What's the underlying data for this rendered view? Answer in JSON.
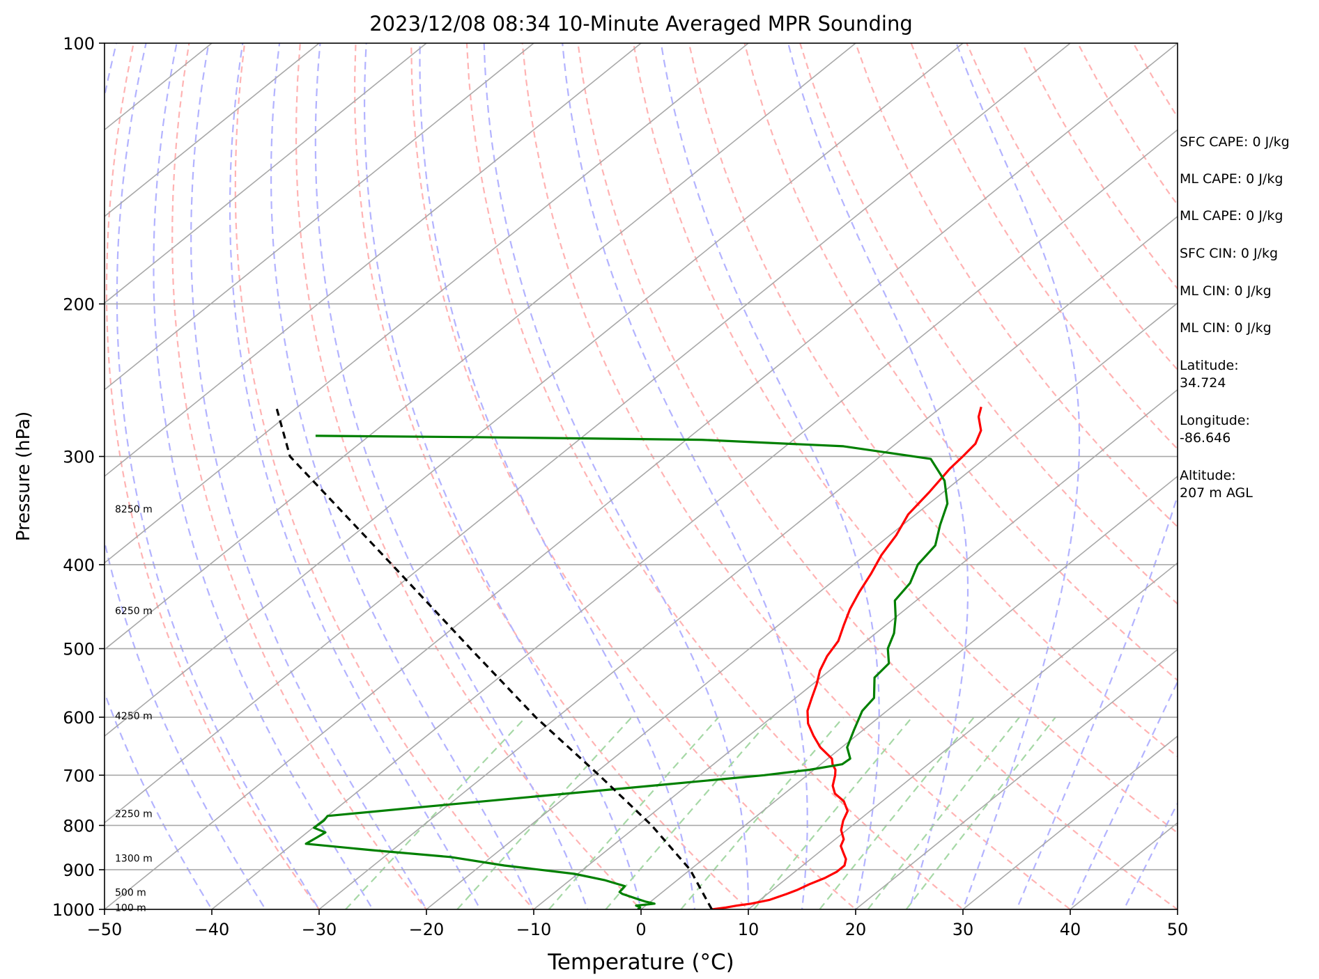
{
  "chart_data": {
    "type": "line",
    "title": "2023/12/08 08:34 10-Minute Averaged MPR Sounding",
    "xlabel": "Temperature (°C)",
    "ylabel": "Pressure (hPa)",
    "xlim": [
      -50,
      50
    ],
    "ylim": [
      1000,
      100
    ],
    "y_scale": "log",
    "skew": "skew-T",
    "x_ticks": [
      "−50",
      "−40",
      "−30",
      "−20",
      "−10",
      "0",
      "10",
      "20",
      "30",
      "40",
      "50"
    ],
    "y_ticks": [
      "100",
      "200",
      "300",
      "400",
      "500",
      "600",
      "700",
      "800",
      "900",
      "1000"
    ],
    "height_labels": [
      {
        "text": "8250 m",
        "p": 345
      },
      {
        "text": "6250 m",
        "p": 452
      },
      {
        "text": "4250 m",
        "p": 598
      },
      {
        "text": "2250 m",
        "p": 775
      },
      {
        "text": "1300 m",
        "p": 873
      },
      {
        "text": "500 m",
        "p": 956
      },
      {
        "text": "100 m",
        "p": 995
      }
    ],
    "series": [
      {
        "role": "temperature",
        "color": "#ff0000",
        "p": [
          1000,
          995,
          990,
          985,
          975,
          960,
          950,
          935,
          920,
          905,
          890,
          875,
          860,
          845,
          830,
          810,
          790,
          770,
          750,
          735,
          720,
          700,
          690,
          680,
          670,
          650,
          630,
          610,
          590,
          570,
          550,
          530,
          510,
          490,
          470,
          450,
          430,
          410,
          390,
          370,
          350,
          330,
          310,
          300,
          290,
          280,
          270,
          263
        ],
        "t": [
          6.6,
          7.7,
          8.5,
          9.6,
          10.9,
          11.8,
          12.3,
          12.8,
          13.5,
          13.9,
          13.9,
          13.3,
          12.3,
          11.3,
          10.8,
          9.5,
          8.6,
          7.9,
          6.4,
          4.7,
          3.6,
          2.6,
          2.0,
          1.1,
          0.4,
          -2.0,
          -4.0,
          -5.9,
          -7.4,
          -8.5,
          -9.6,
          -10.9,
          -11.9,
          -12.6,
          -13.9,
          -15.2,
          -16.3,
          -17.3,
          -18.5,
          -19.4,
          -20.7,
          -21.3,
          -22.1,
          -22.3,
          -22.6,
          -23.6,
          -25.4,
          -26.3
        ]
      },
      {
        "role": "dewpoint",
        "color": "#008000",
        "p": [
          1000,
          995,
          990,
          985,
          980,
          975,
          960,
          955,
          940,
          925,
          910,
          890,
          870,
          855,
          840,
          825,
          815,
          805,
          790,
          780,
          760,
          720,
          700,
          690,
          680,
          670,
          650,
          620,
          590,
          570,
          540,
          520,
          500,
          480,
          460,
          440,
          420,
          400,
          380,
          360,
          340,
          320,
          302,
          292,
          287,
          285,
          284
        ],
        "t": [
          -0.3,
          -0.3,
          -0.9,
          0.6,
          -0.4,
          -1.2,
          -3.5,
          -4.0,
          -4.2,
          -6.8,
          -10.3,
          -17.8,
          -23.8,
          -31.6,
          -38.8,
          -38.5,
          -38.3,
          -39.9,
          -39.8,
          -40.0,
          -31.4,
          -13.3,
          -4.0,
          -0.4,
          2.0,
          2.1,
          0.5,
          -0.9,
          -2.3,
          -2.7,
          -5.0,
          -5.3,
          -7.1,
          -8.3,
          -10.0,
          -12.0,
          -12.6,
          -14.0,
          -14.6,
          -16.5,
          -18.3,
          -21.2,
          -25.0,
          -34.6,
          -48.6,
          -70.0,
          -85.0
        ]
      },
      {
        "role": "parcel",
        "color": "#000000",
        "style": "dashed",
        "p": [
          1000,
          900,
          800,
          700,
          600,
          500,
          400,
          300,
          263
        ],
        "t": [
          6.6,
          0.0,
          -8.7,
          -19.4,
          -32.0,
          -46.0,
          -63.0,
          -85.0,
          -92.0
        ]
      }
    ]
  },
  "info_panel": {
    "lines": [
      "SFC CAPE: 0 J/kg",
      "ML CAPE: 0 J/kg",
      "ML CAPE: 0 J/kg",
      "SFC CIN: 0 J/kg",
      "ML CIN: 0 J/kg",
      "ML CIN: 0 J/kg",
      "Latitude:",
      "34.724",
      "Longitude:",
      "-86.646",
      "Altitude:",
      "207 m AGL"
    ]
  },
  "colors": {
    "isotherm": "#a8a8a8",
    "dry_adiabat": "#ffb3b3",
    "moist_adiabat": "#b3b3ff",
    "mixing_ratio": "#a6d8a6"
  }
}
